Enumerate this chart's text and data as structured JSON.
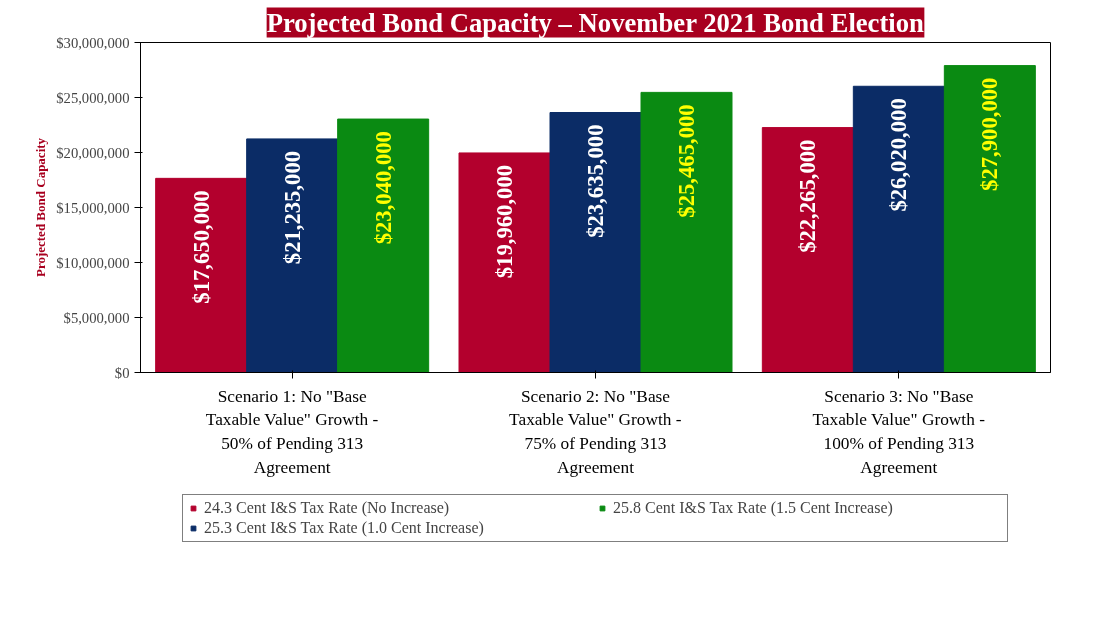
{
  "chart_data": {
    "type": "bar",
    "title": "Projected Bond Capacity – November 2021 Bond Election",
    "ylabel": "Projected Bond Capacity",
    "categories": [
      "Scenario 1: No \"Base Taxable Value\" Growth - 50% of Pending 313 Agreement",
      "Scenario 2: No \"Base Taxable Value\" Growth - 75% of Pending 313 Agreement",
      "Scenario 3: No \"Base Taxable Value\" Growth - 100% of Pending 313 Agreement"
    ],
    "series": [
      {
        "name": "24.3 Cent I&S Tax Rate (No Increase)",
        "color": "#b3002d",
        "values": [
          17650000,
          19960000,
          22265000
        ],
        "value_labels": [
          "$17,650,000",
          "$19,960,000",
          "$22,265,000"
        ]
      },
      {
        "name": "25.3 Cent I&S Tax Rate (1.0 Cent Increase)",
        "color": "#0b2c66",
        "values": [
          21235000,
          23635000,
          26020000
        ],
        "value_labels": [
          "$21,235,000",
          "$23,635,000",
          "$26,020,000"
        ]
      },
      {
        "name": "25.8 Cent I&S Tax Rate (1.5 Cent Increase)",
        "color": "#0a8a12",
        "values": [
          23040000,
          25465000,
          27900000
        ],
        "value_labels": [
          "$23,040,000",
          "$25,465,000",
          "$27,900,000"
        ]
      }
    ],
    "ylim": [
      0,
      30000000
    ],
    "yticks": [
      {
        "value": 0,
        "label": "$0"
      },
      {
        "value": 5000000,
        "label": "$5,000,000"
      },
      {
        "value": 10000000,
        "label": "$10,000,000"
      },
      {
        "value": 15000000,
        "label": "$15,000,000"
      },
      {
        "value": 20000000,
        "label": "$20,000,000"
      },
      {
        "value": 25000000,
        "label": "$25,000,000"
      },
      {
        "value": 30000000,
        "label": "$30,000,000"
      }
    ],
    "grid": false,
    "legend": "bottom"
  }
}
